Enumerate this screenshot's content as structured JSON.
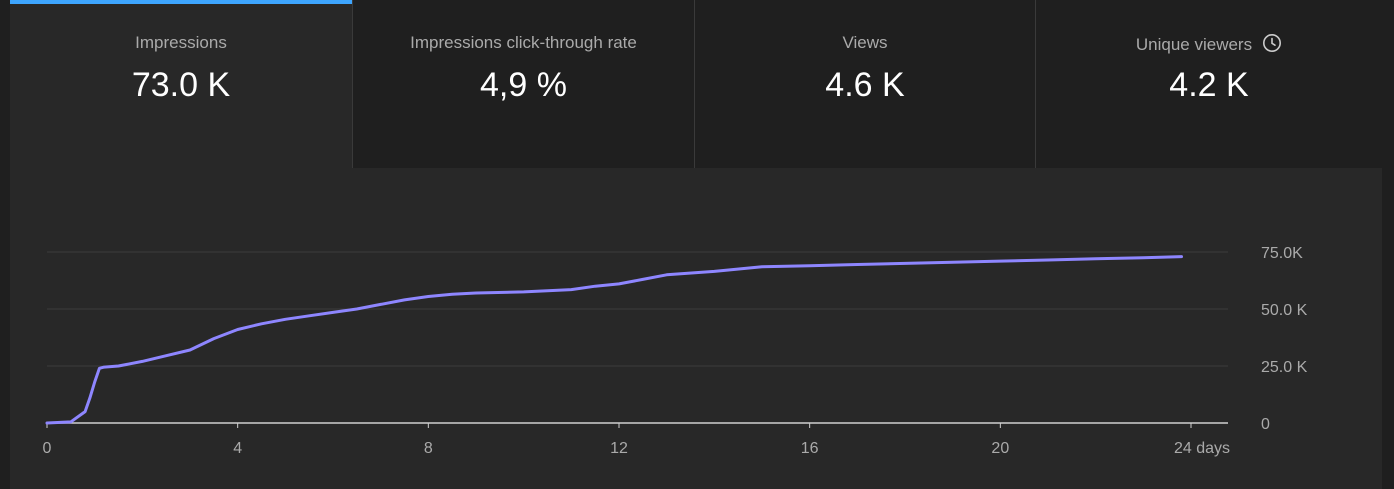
{
  "metrics": [
    {
      "label": "Impressions",
      "value": "73.0 K",
      "active": true
    },
    {
      "label": "Impressions click-through rate",
      "value": "4,9 %",
      "active": false
    },
    {
      "label": "Views",
      "value": "4.6 K",
      "active": false
    },
    {
      "label": "Unique viewers",
      "value": "4.2 K",
      "active": false,
      "icon": "clock-icon"
    }
  ],
  "colors": {
    "line": "#8e86ff",
    "accent": "#3ea6ff",
    "grid": "#3c3c3c",
    "baseline": "#d0d0d0"
  },
  "chart_data": {
    "type": "line",
    "title": "",
    "xlabel": "",
    "ylabel": "",
    "xlim": [
      0,
      24
    ],
    "ylim": [
      0,
      75000
    ],
    "x_ticks": [
      {
        "v": 0,
        "label": "0"
      },
      {
        "v": 4,
        "label": "4"
      },
      {
        "v": 8,
        "label": "8"
      },
      {
        "v": 12,
        "label": "12"
      },
      {
        "v": 16,
        "label": "16"
      },
      {
        "v": 20,
        "label": "20"
      },
      {
        "v": 24,
        "label": "24 days"
      }
    ],
    "y_ticks": [
      {
        "v": 0,
        "label": "0"
      },
      {
        "v": 25000,
        "label": "25.0 K"
      },
      {
        "v": 50000,
        "label": "50.0 K"
      },
      {
        "v": 75000,
        "label": "75.0K"
      }
    ],
    "grid": true,
    "series": [
      {
        "x": [
          0,
          0.5,
          0.6,
          0.8,
          0.9,
          1.0,
          1.1,
          1.2,
          1.5,
          2.0,
          2.5,
          3.0,
          3.5,
          4.0,
          4.5,
          5.0,
          5.5,
          6.0,
          6.5,
          7.0,
          7.5,
          8.0,
          8.5,
          9.0,
          10.0,
          11.0,
          11.5,
          12.0,
          12.5,
          13.0,
          14.0,
          15.0,
          16.0,
          17.0,
          18.0,
          19.0,
          20.0,
          21.0,
          22.0,
          23.0,
          23.8
        ],
        "values": [
          0,
          500,
          2000,
          5000,
          11000,
          18000,
          24000,
          24500,
          25000,
          27000,
          29500,
          32000,
          37000,
          41000,
          43500,
          45500,
          47000,
          48500,
          50000,
          52000,
          54000,
          55500,
          56500,
          57000,
          57500,
          58500,
          60000,
          61000,
          63000,
          65000,
          66500,
          68500,
          69000,
          69500,
          70000,
          70500,
          71000,
          71500,
          72000,
          72500,
          73000
        ]
      }
    ]
  }
}
